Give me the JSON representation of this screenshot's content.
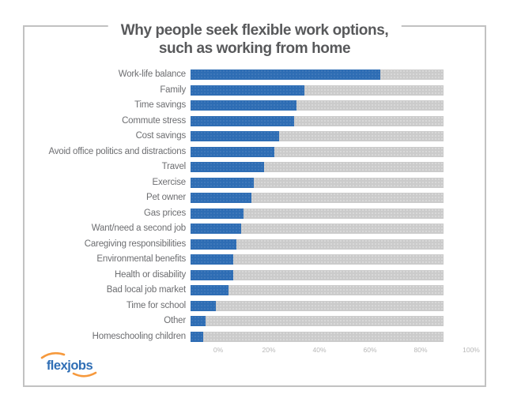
{
  "title": {
    "line1": "Why people seek flexible work options,",
    "line2": "such as working from home"
  },
  "logo": {
    "text": "flexjobs"
  },
  "colors": {
    "bar_fill": "#2e6db4",
    "bar_track": "#cbcbcb",
    "title_text": "#58595b",
    "label_text": "#6d6e71",
    "tick_text": "#b7b7b7",
    "border": "#c2c2c2",
    "logo_blue": "#2f6eb5",
    "logo_orange": "#f6993c"
  },
  "chart_data": {
    "type": "bar",
    "orientation": "horizontal",
    "title": "Why people seek flexible work options, such as working from home",
    "xlabel": "",
    "ylabel": "",
    "xlim": [
      0,
      100
    ],
    "value_unit": "%",
    "grid": false,
    "legend": false,
    "full_length_track": true,
    "x_ticks": [
      "0%",
      "20%",
      "40%",
      "60%",
      "80%",
      "100%"
    ],
    "categories": [
      "Work-life balance",
      "Family",
      "Time savings",
      "Commute stress",
      "Cost savings",
      "Avoid office politics and distractions",
      "Travel",
      "Exercise",
      "Pet owner",
      "Gas prices",
      "Want/need a second job",
      "Caregiving responsibilities",
      "Environmental benefits",
      "Health or disability",
      "Bad local job market",
      "Time for school",
      "Other",
      "Homeschooling children"
    ],
    "values": [
      75,
      45,
      42,
      41,
      35,
      33,
      29,
      25,
      24,
      21,
      20,
      18,
      17,
      17,
      15,
      10,
      6,
      5
    ]
  }
}
